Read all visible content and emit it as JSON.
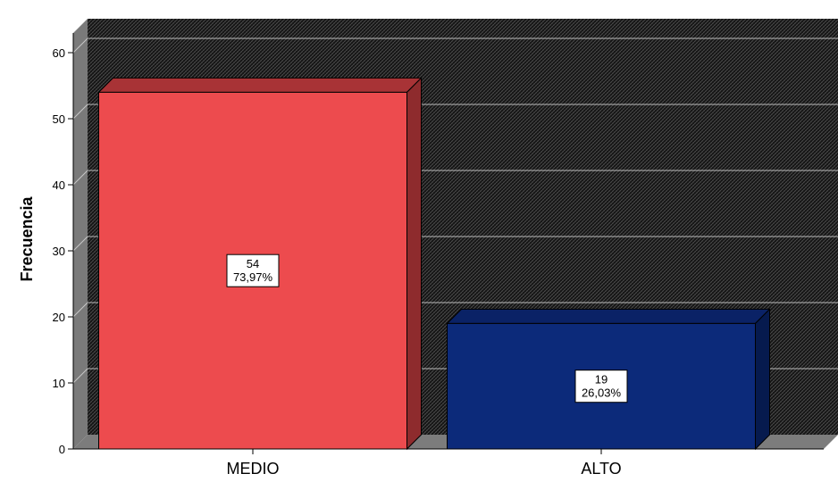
{
  "chart_data": {
    "type": "bar",
    "ylabel": "Frecuencia",
    "ylim": [
      0,
      60
    ],
    "yticks": [
      "0",
      "10",
      "20",
      "30",
      "40",
      "50",
      "60"
    ],
    "categories": [
      "MEDIO",
      "ALTO"
    ],
    "values": [
      54,
      19
    ],
    "data_labels": [
      {
        "count": "54",
        "percent": "73,97%"
      },
      {
        "count": "19",
        "percent": "26,03%"
      }
    ],
    "bar_colors": [
      {
        "front": "#ed4b4e",
        "side": "#8e2b2d",
        "top": "#a83336"
      },
      {
        "front": "#0c2a7a",
        "side": "#061a4e",
        "top": "#0a2266"
      }
    ],
    "style": {
      "plot_background": "#141414",
      "hatch_color": "#5a5a5a",
      "side_wall": "#7a7a7a",
      "floor": "#7c7c7c",
      "gridline": "#bdbdbd",
      "three_d": true,
      "grid": true,
      "legend": "none"
    }
  }
}
